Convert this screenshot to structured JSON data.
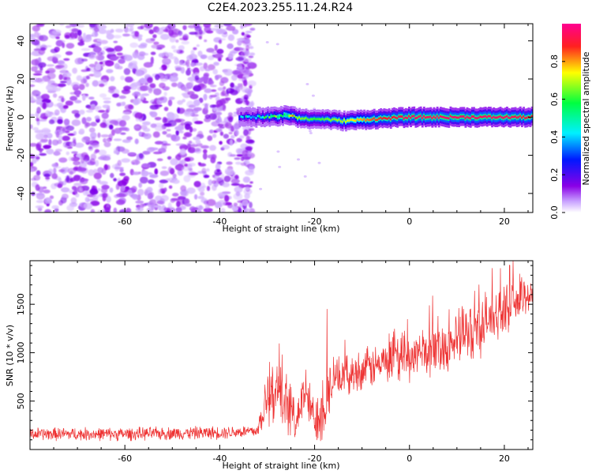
{
  "title": "C2E4.2023.255.11.24.R24",
  "chart_data": [
    {
      "type": "heatmap",
      "xlabel": "Height of straight line (km)",
      "ylabel": "Frequency (Hz)",
      "xlim": [
        -80,
        26
      ],
      "ylim": [
        -50,
        49
      ],
      "x_ticks": [
        -60,
        -40,
        -20,
        0,
        20
      ],
      "y_ticks": [
        -40,
        -20,
        0,
        20,
        40
      ],
      "signal_band": {
        "x_start": -36,
        "x_end": 26,
        "center_freq": [
          [
            -36,
            0
          ],
          [
            -30,
            0
          ],
          [
            -26,
            1
          ],
          [
            -22,
            -1
          ],
          [
            -18,
            -1
          ],
          [
            -14,
            -2
          ],
          [
            -8,
            -1
          ],
          [
            0,
            0
          ],
          [
            10,
            0
          ],
          [
            20,
            0
          ],
          [
            26,
            0
          ]
        ],
        "amplitude": [
          [
            -36,
            0.35
          ],
          [
            -30,
            0.5
          ],
          [
            -25,
            0.7
          ],
          [
            -20,
            0.6
          ],
          [
            -14,
            0.7
          ],
          [
            -8,
            0.85
          ],
          [
            0,
            0.95
          ],
          [
            10,
            0.95
          ],
          [
            20,
            0.95
          ],
          [
            26,
            0.9
          ]
        ]
      },
      "noise_region_x": [
        -80,
        -33
      ],
      "colorbar": {
        "label": "Normalized spectral amplitude",
        "range": [
          0,
          1
        ],
        "ticks": [
          "0.0",
          "0.2",
          "0.4",
          "0.6",
          "0.8"
        ],
        "colors": [
          "#ffffff",
          "#8a00e6",
          "#0018ff",
          "#00f0ff",
          "#00ff40",
          "#ffff00",
          "#ff2020",
          "#ff0090"
        ]
      }
    },
    {
      "type": "line",
      "xlabel": "Height of straight line (km)",
      "ylabel": "SNR (10 * v/v)",
      "xlim": [
        -80,
        26
      ],
      "ylim": [
        0,
        1950
      ],
      "x_ticks": [
        -60,
        -40,
        -20,
        0,
        20
      ],
      "y_ticks": [
        500,
        1000,
        1500
      ],
      "color": "#ee3333",
      "envelope": [
        {
          "x": -80,
          "y": 160,
          "amp": 80
        },
        {
          "x": -60,
          "y": 160,
          "amp": 80
        },
        {
          "x": -40,
          "y": 175,
          "amp": 80
        },
        {
          "x": -32,
          "y": 190,
          "amp": 80
        },
        {
          "x": -30,
          "y": 600,
          "amp": 450
        },
        {
          "x": -26,
          "y": 500,
          "amp": 380
        },
        {
          "x": -24,
          "y": 300,
          "amp": 250
        },
        {
          "x": -22,
          "y": 600,
          "amp": 330
        },
        {
          "x": -20,
          "y": 300,
          "amp": 250
        },
        {
          "x": -18,
          "y": 500,
          "amp": 550
        },
        {
          "x": -16,
          "y": 720,
          "amp": 220
        },
        {
          "x": -8,
          "y": 850,
          "amp": 260
        },
        {
          "x": 0,
          "y": 950,
          "amp": 280
        },
        {
          "x": 8,
          "y": 1080,
          "amp": 320
        },
        {
          "x": 14,
          "y": 1250,
          "amp": 380
        },
        {
          "x": 20,
          "y": 1450,
          "amp": 280
        },
        {
          "x": 26,
          "y": 1620,
          "amp": 220
        }
      ]
    }
  ]
}
